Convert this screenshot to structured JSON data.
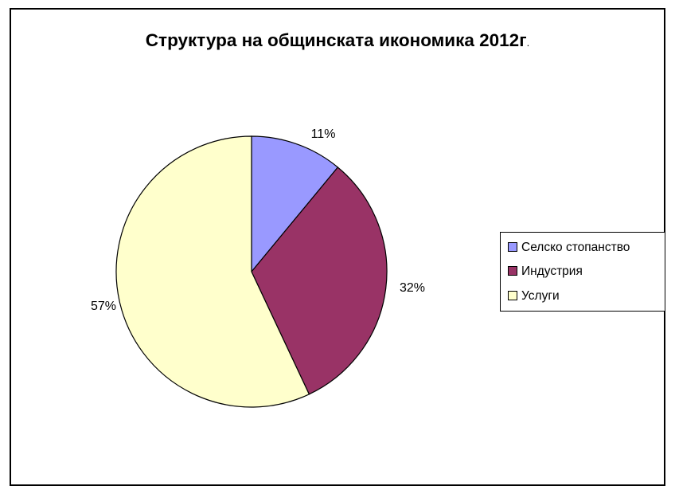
{
  "chart_data": {
    "type": "pie",
    "title": "Структура на общинската икономика 2012г",
    "title_suffix": ".",
    "categories": [
      "Селско стопанство",
      "Индустрия",
      "Услуги"
    ],
    "values": [
      11,
      32,
      57
    ],
    "labels": [
      "11%",
      "32%",
      "57%"
    ],
    "colors": [
      "#9999FF",
      "#993366",
      "#FFFFCC"
    ],
    "legend_position": "right"
  }
}
